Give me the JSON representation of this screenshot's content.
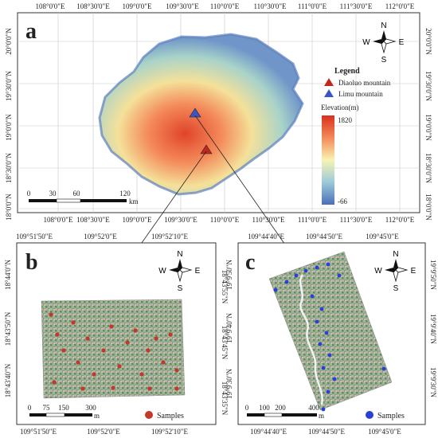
{
  "panel_a": {
    "letter": "a",
    "top_ticks": [
      "108°0'0\"E",
      "108°30'0\"E",
      "109°0'0\"E",
      "109°30'0\"E",
      "110°0'0\"E",
      "110°30'0\"E",
      "111°0'0\"E",
      "111°30'0\"E",
      "112°0'0\"E"
    ],
    "bottom_ticks": [
      "108°0'0\"E",
      "108°30'0\"E",
      "109°0'0\"E",
      "109°30'0\"E",
      "110°0'0\"E",
      "110°30'0\"E",
      "111°0'0\"E",
      "111°30'0\"E",
      "112°0'0\"E"
    ],
    "left_ticks": [
      "20°0'0\"N",
      "19°30'0\"N",
      "19°0'0\"N",
      "18°30'0\"N",
      "18°0'0\"N"
    ],
    "right_ticks": [
      "20°0'0\"N",
      "19°30'0\"N",
      "19°0'0\"N",
      "18°30'0\"N",
      "18°0'0\"N"
    ],
    "legend_title": "Legend",
    "legend_items": [
      {
        "label": "Diaoluo mountain",
        "color": "#c0281e"
      },
      {
        "label": "Limu mountain",
        "color": "#3a55c8"
      }
    ],
    "elevation_title": "Elevation(m)",
    "elevation_max": "1820",
    "elevation_min": "-66",
    "scale_ticks": [
      "0",
      "30",
      "60",
      "120"
    ],
    "scale_unit": "km",
    "compass": {
      "n": "N",
      "s": "S",
      "e": "E",
      "w": "W"
    }
  },
  "panel_b": {
    "letter": "b",
    "top_ticks": [
      "109°51'50\"E",
      "109°52'0\"E",
      "109°52'10\"E"
    ],
    "bottom_ticks": [
      "109°51'50\"E",
      "109°52'0\"E",
      "109°52'10\"E"
    ],
    "left_ticks": [
      "18°44'0\"N",
      "18°43'50\"N",
      "18°43'40\"N"
    ],
    "right_ticks": [
      "18°43'55\"N",
      "18°43'45\"N",
      "18°43'35\"N"
    ],
    "scale_ticks": [
      "0",
      "75",
      "150",
      "300"
    ],
    "scale_unit": "m",
    "samples_label": "Samples",
    "samples_color": "#c0392b",
    "compass": {
      "n": "N",
      "s": "S",
      "e": "E",
      "w": "W"
    }
  },
  "panel_c": {
    "letter": "c",
    "top_ticks": [
      "109°44'40\"E",
      "109°44'50\"E",
      "109°45'0\"E"
    ],
    "bottom_ticks": [
      "109°44'40\"E",
      "109°44'50\"E",
      "109°45'0\"E"
    ],
    "left_ticks": [
      "19°9'50\"N",
      "19°9'40\"N",
      "19°9'30\"N"
    ],
    "right_ticks": [
      "19°9'50\"N",
      "19°9'40\"N",
      "19°9'30\"N"
    ],
    "scale_ticks": [
      "0",
      "100",
      "200",
      "400"
    ],
    "scale_unit": "m",
    "samples_label": "Samples",
    "samples_color": "#2b3fd6",
    "compass": {
      "n": "N",
      "s": "S",
      "e": "E",
      "w": "W"
    }
  }
}
